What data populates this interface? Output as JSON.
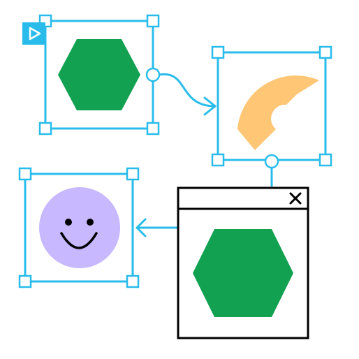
{
  "colors": {
    "selection": "#29BCEB",
    "hexagon": "#12A150",
    "arc": "#FFC676",
    "face": "#C7B8FF",
    "ink": "#000000",
    "background": "#FFFFFF"
  },
  "icons": {
    "start_marker": "play-triangle-icon",
    "connector_end": "chevron-arrow-icon",
    "window_close": "close-x-icon",
    "face": "smiley-face-icon"
  },
  "nodes": [
    {
      "id": "node-hexagon",
      "content": "hexagon",
      "selected": true
    },
    {
      "id": "node-arc",
      "content": "arc",
      "selected": true
    },
    {
      "id": "node-smiley",
      "content": "smiley-face",
      "selected": true
    }
  ],
  "window": {
    "content": "hexagon",
    "close_icon": "close-x-icon"
  }
}
